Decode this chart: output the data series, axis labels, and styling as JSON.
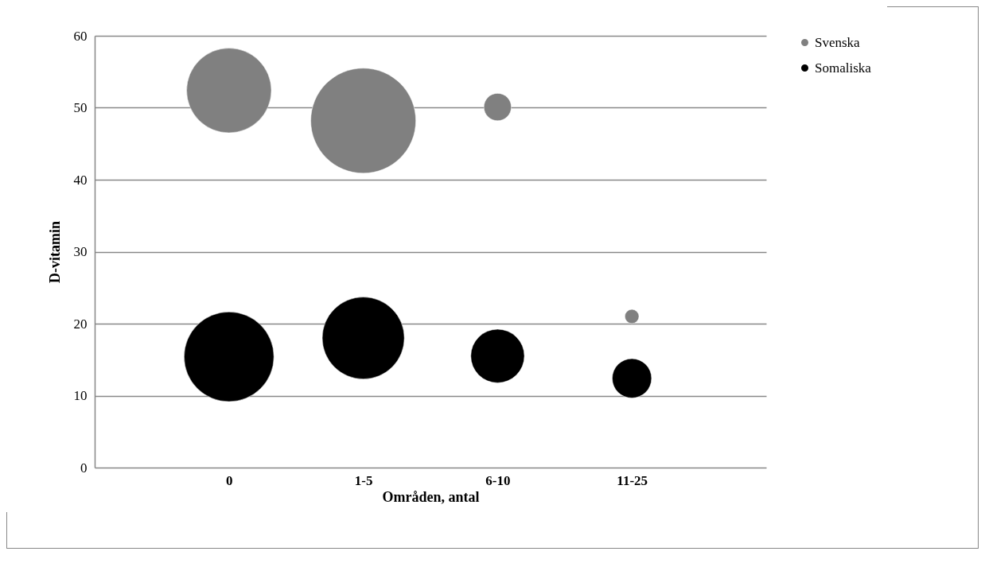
{
  "chart_data": {
    "type": "bubble",
    "xlabel": "Områden, antal",
    "ylabel": "D-vitamin",
    "categories": [
      "0",
      "1-5",
      "6-10",
      "11-25"
    ],
    "series": [
      {
        "name": "Svenska",
        "color": "#808080",
        "values": [
          52.4,
          48.2,
          50.1,
          21.0
        ],
        "sizes": [
          0.65,
          1,
          0.068,
          0.018
        ]
      },
      {
        "name": "Somaliska",
        "color": "#000000",
        "values": [
          15.4,
          18.0,
          15.5,
          12.4
        ],
        "sizes": [
          0.73,
          0.61,
          0.26,
          0.14
        ]
      }
    ],
    "ylim": [
      0,
      60
    ],
    "yticks": [
      0,
      10,
      20,
      30,
      40,
      50,
      60
    ],
    "grid": "y",
    "legend": "right"
  }
}
